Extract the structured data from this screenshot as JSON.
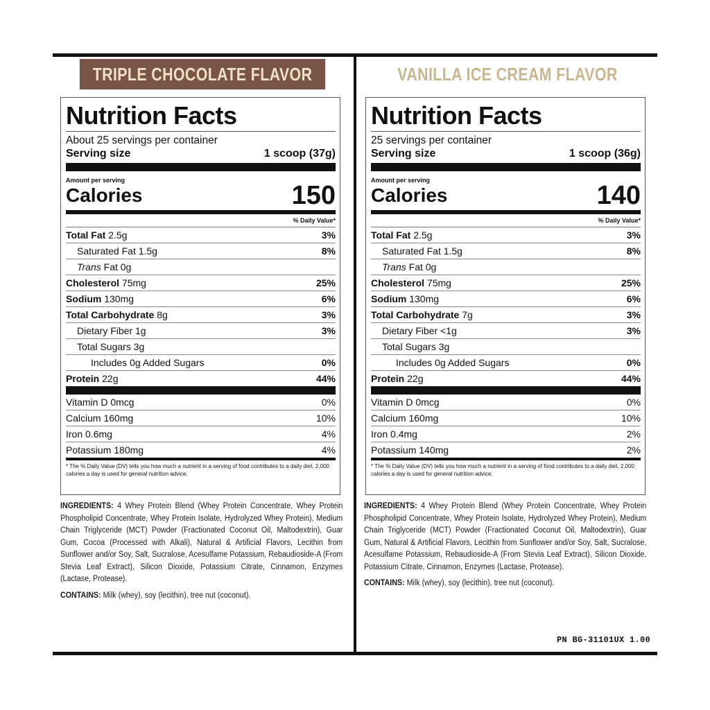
{
  "left": {
    "flavor": "TRIPLE CHOCOLATE FLAVOR",
    "title": "Nutrition Facts",
    "servings": "About 25 servings per container",
    "serving_size_label": "Serving size",
    "serving_size_value": "1 scoop (37g)",
    "amount_per_serving": "Amount per serving",
    "calories_label": "Calories",
    "calories_value": "150",
    "dv_header": "% Daily Value*",
    "total_fat_label": "Total Fat",
    "total_fat_amt": "2.5g",
    "total_fat_pct": "3%",
    "sat_fat": "Saturated Fat 1.5g",
    "sat_fat_pct": "8%",
    "trans_label": "Trans",
    "trans_rest": "Fat 0g",
    "chol_label": "Cholesterol",
    "chol_amt": "75mg",
    "chol_pct": "25%",
    "sodium_label": "Sodium",
    "sodium_amt": "130mg",
    "sodium_pct": "6%",
    "carb_label": "Total Carbohydrate",
    "carb_amt": "8g",
    "carb_pct": "3%",
    "fiber": "Dietary Fiber 1g",
    "fiber_pct": "3%",
    "sugars": "Total Sugars 3g",
    "added_sugars": "Includes 0g Added Sugars",
    "added_sugars_pct": "0%",
    "protein_label": "Protein",
    "protein_amt": "22g",
    "protein_pct": "44%",
    "vitd": "Vitamin D 0mcg",
    "vitd_pct": "0%",
    "calcium": "Calcium 160mg",
    "calcium_pct": "10%",
    "iron": "Iron 0.6mg",
    "iron_pct": "4%",
    "potassium": "Potassium 180mg",
    "potassium_pct": "4%",
    "footnote": "* The % Daily Value (DV) tells you how much a nutrient in a serving of food contributes to a daily diet. 2,000 calories a day is used for general nutrition advice.",
    "ingredients_head": "INGREDIENTS:",
    "ingredients_body": "4 Whey Protein Blend (Whey Protein Concentrate, Whey Protein Phospholipid Concentrate, Whey Protein Isolate, Hydrolyzed Whey Protein), Medium Chain Triglyceride (MCT) Powder (Fractionated Coconut Oil, Maltodextrin), Guar Gum, Cocoa (Processed with Alkali), Natural & Artificial Flavors, Lecithin from Sunflower and/or Soy, Salt, Sucralose, Acesulfame Potassium, Rebaudioside-A (From Stevia Leaf Extract), Silicon Dioxide, Potassium Citrate, Cinnamon, Enzymes (Lactase, Protease).",
    "contains_head": "CONTAINS:",
    "contains_body": "Milk (whey), soy (lecithin), tree nut (coconut)."
  },
  "right": {
    "flavor": "VANILLA ICE CREAM FLAVOR",
    "title": "Nutrition Facts",
    "servings": "25 servings per container",
    "serving_size_label": "Serving size",
    "serving_size_value": "1 scoop (36g)",
    "amount_per_serving": "Amount per serving",
    "calories_label": "Calories",
    "calories_value": "140",
    "dv_header": "% Daily Value*",
    "total_fat_label": "Total Fat",
    "total_fat_amt": "2.5g",
    "total_fat_pct": "3%",
    "sat_fat": "Saturated Fat 1.5g",
    "sat_fat_pct": "8%",
    "trans_label": "Trans",
    "trans_rest": "Fat 0g",
    "chol_label": "Cholesterol",
    "chol_amt": "75mg",
    "chol_pct": "25%",
    "sodium_label": "Sodium",
    "sodium_amt": "130mg",
    "sodium_pct": "6%",
    "carb_label": "Total Carbohydrate",
    "carb_amt": "7g",
    "carb_pct": "3%",
    "fiber": "Dietary Fiber <1g",
    "fiber_pct": "3%",
    "sugars": "Total Sugars 3g",
    "added_sugars": "Includes 0g Added Sugars",
    "added_sugars_pct": "0%",
    "protein_label": "Protein",
    "protein_amt": "22g",
    "protein_pct": "44%",
    "vitd": "Vitamin D 0mcg",
    "vitd_pct": "0%",
    "calcium": "Calcium 160mg",
    "calcium_pct": "10%",
    "iron": "Iron 0.4mg",
    "iron_pct": "2%",
    "potassium": "Potassium 140mg",
    "potassium_pct": "2%",
    "footnote": "* The % Daily Value (DV) tells you how much a nutrient in a serving of food contributes to a daily diet. 2,000 calories a day is used for general nutrition advice.",
    "ingredients_head": "INGREDIENTS:",
    "ingredients_body": "4 Whey Protein Blend (Whey Protein Concentrate, Whey Protein Phospholipid Concentrate, Whey Protein Isolate, Hydrolyzed Whey Protein), Medium Chain Triglyceride (MCT) Powder (Fractionated Coconut Oil, Maltodextrin), Guar Gum, Natural & Artificial Flavors, Lecithin from Sunflower and/or Soy, Salt, Sucralose, Acesulfame Potassium, Rebaudioside-A (From Stevia Leaf Extract), Silicon Dioxide, Potassium Citrate, Cinnamon, Enzymes (Lactase, Protease).",
    "contains_head": "CONTAINS:",
    "contains_body": "Milk (whey), soy (lecithin), tree nut (coconut)."
  },
  "part_number": "PN BG-31101UX 1.00",
  "colors": {
    "chocolate_band": "#7a5446",
    "chocolate_text": "#efe2c6",
    "vanilla_text": "#c9b68f"
  }
}
